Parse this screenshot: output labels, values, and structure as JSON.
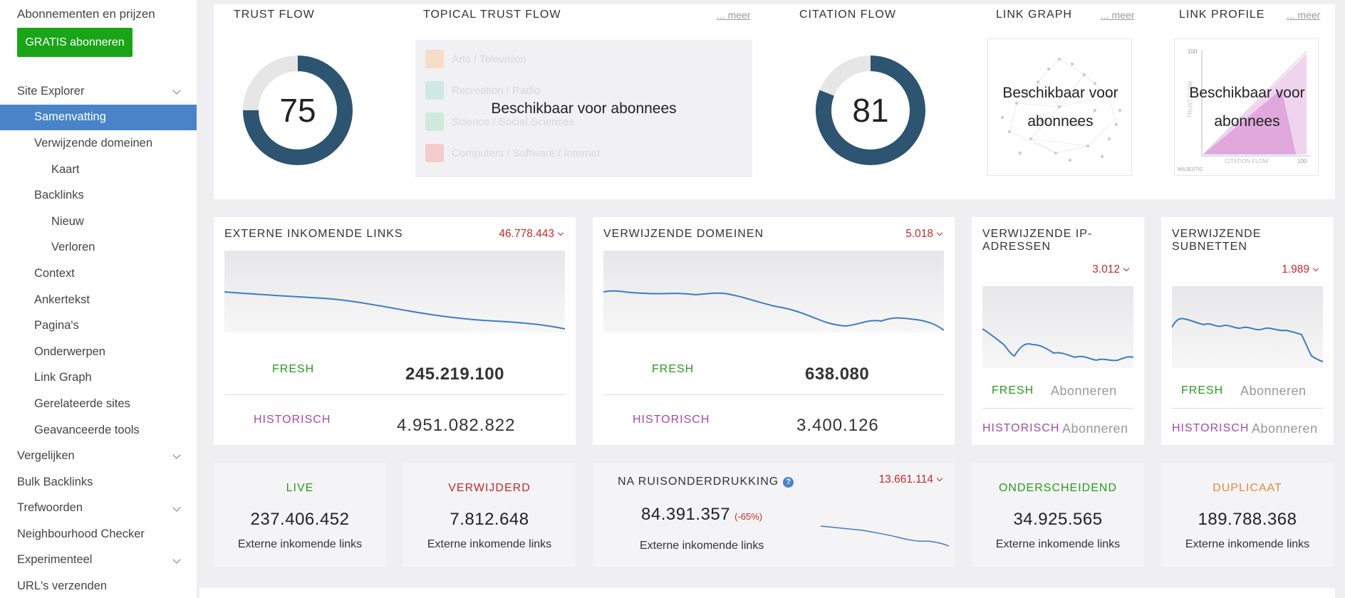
{
  "sidebar": {
    "top_link": "Abonnementen en prijzen",
    "cta": "GRATIS abonneren",
    "items": [
      {
        "label": "Site Explorer"
      },
      {
        "label": "Samenvatting"
      },
      {
        "label": "Verwijzende domeinen"
      },
      {
        "label": "Kaart"
      },
      {
        "label": "Backlinks"
      },
      {
        "label": "Nieuw"
      },
      {
        "label": "Verloren"
      },
      {
        "label": "Context"
      },
      {
        "label": "Ankertekst"
      },
      {
        "label": "Pagina's"
      },
      {
        "label": "Onderwerpen"
      },
      {
        "label": "Link Graph"
      },
      {
        "label": "Gerelateerde sites"
      },
      {
        "label": "Geavanceerde tools"
      },
      {
        "label": "Vergelijken"
      },
      {
        "label": "Bulk Backlinks"
      },
      {
        "label": "Trefwoorden"
      },
      {
        "label": "Neighbourhood Checker"
      },
      {
        "label": "Experimenteel"
      },
      {
        "label": "URL's verzenden"
      }
    ]
  },
  "flows": {
    "trust_flow": {
      "title": "TRUST FLOW",
      "value": "75",
      "fraction": 0.75
    },
    "topical": {
      "title": "TOPICAL TRUST FLOW",
      "meer": "... meer",
      "topics": [
        "Arts / Television",
        "Recreation / Radio",
        "Science / Social Sciences",
        "Computers / Software / Internet"
      ],
      "overlay": "Beschikbaar voor abonnees"
    },
    "citation_flow": {
      "title": "CITATION FLOW",
      "value": "81",
      "fraction": 0.81
    },
    "link_graph": {
      "title": "LINK GRAPH",
      "meer": "... meer",
      "overlay_1": "Beschikbaar voor",
      "overlay_2": "abonnees"
    },
    "link_profile": {
      "title": "LINK PROFILE",
      "meer": "... meer",
      "overlay_1": "Beschikbaar voor",
      "overlay_2": "abonnees",
      "axis_y": "TRUST FLOW",
      "axis_x": "CITATION FLOW",
      "tick_100": "100",
      "brand": "MAJESTIC"
    }
  },
  "metrics": {
    "external_links": {
      "title": "EXTERNE INKOMENDE LINKS",
      "count": "46.778.443",
      "fresh_label": "FRESH",
      "fresh_value": "245.219.100",
      "hist_label": "HISTORISCH",
      "hist_value": "4.951.082.822"
    },
    "ref_domains": {
      "title": "VERWIJZENDE DOMEINEN",
      "count": "5.018",
      "fresh_label": "FRESH",
      "fresh_value": "638.080",
      "hist_label": "HISTORISCH",
      "hist_value": "3.400.126"
    },
    "ref_ips": {
      "title_1": "VERWIJZENDE IP-",
      "title_2": "ADRESSEN",
      "count": "3.012",
      "fresh_label": "FRESH",
      "fresh_value": "Abonneren",
      "hist_label": "HISTORISCH",
      "hist_value": "Abonneren"
    },
    "ref_subnets": {
      "title_1": "VERWIJZENDE",
      "title_2": "SUBNETTEN",
      "count": "1.989",
      "fresh_label": "FRESH",
      "fresh_value": "Abonneren",
      "hist_label": "HISTORISCH",
      "hist_value": "Abonneren"
    }
  },
  "bottom": {
    "live": {
      "title": "LIVE",
      "value": "237.406.452",
      "sub": "Externe inkomende links",
      "color": "#2a9a1e"
    },
    "removed": {
      "title": "VERWIJDERD",
      "value": "7.812.648",
      "sub": "Externe inkomende links",
      "color": "#c52a2a"
    },
    "noise": {
      "title": "NA RUISONDERDRUKKING",
      "help": "?",
      "count": "13.661.114",
      "value": "84.391.357",
      "pct": "(-65%)",
      "sub": "Externe inkomende links"
    },
    "distinct": {
      "title": "ONDERSCHEIDEND",
      "value": "34.925.565",
      "sub": "Externe inkomende links",
      "color": "#2a9a1e"
    },
    "duplicate": {
      "title": "DUPLICAAT",
      "value": "189.788.368",
      "sub": "Externe inkomende links",
      "color": "#e48a3a"
    }
  },
  "colors": {
    "accent": "#4a84c8",
    "donut": "#2d5470",
    "donut_bg": "#e6e6e6",
    "green_cta": "#1aa518"
  }
}
